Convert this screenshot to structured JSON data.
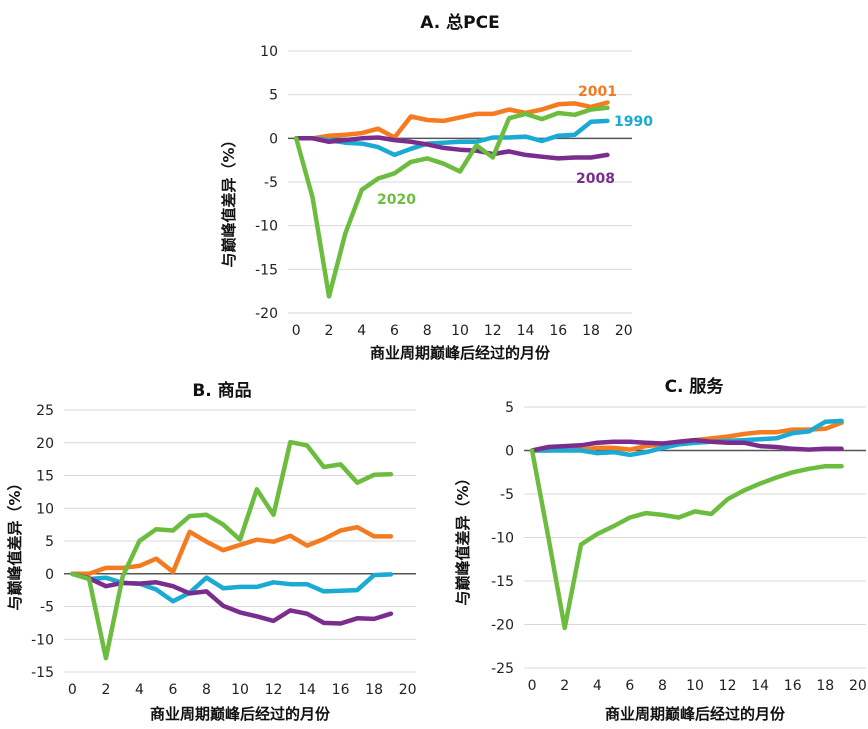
{
  "chart_data": [
    {
      "type": "line",
      "title": "A. 总PCE",
      "xlabel": "商业周期巅峰后经过的月份",
      "ylabel": "与巅峰值差异（%）",
      "xlim": [
        -0.5,
        20.5
      ],
      "ylim": [
        -20,
        10
      ],
      "xticks": [
        "0",
        "2",
        "4",
        "6",
        "8",
        "10",
        "12",
        "14",
        "16",
        "18",
        "20"
      ],
      "yticks": [
        "10",
        "5",
        "0",
        "-5",
        "-10",
        "-15",
        "-20"
      ],
      "series": [
        {
          "name": "2001",
          "color": "#f47b20",
          "x": [
            0,
            1,
            2,
            3,
            4,
            5,
            6,
            7,
            8,
            9,
            10,
            11,
            12,
            13,
            14,
            15,
            16,
            17,
            18,
            19
          ],
          "y": [
            0,
            0,
            0.3,
            0.4,
            0.6,
            1.1,
            0.1,
            2.5,
            2.1,
            2.0,
            2.4,
            2.8,
            2.8,
            3.3,
            2.9,
            3.3,
            3.9,
            4.0,
            3.6,
            4.1
          ]
        },
        {
          "name": "1990",
          "color": "#1aabd4",
          "x": [
            0,
            1,
            2,
            3,
            4,
            5,
            6,
            7,
            8,
            9,
            10,
            11,
            12,
            13,
            14,
            15,
            16,
            17,
            18,
            19
          ],
          "y": [
            0,
            0,
            -0.2,
            -0.5,
            -0.6,
            -1.0,
            -1.9,
            -1.2,
            -0.6,
            -0.5,
            -0.4,
            -0.4,
            0.1,
            0.1,
            0.2,
            -0.3,
            0.3,
            0.4,
            1.9,
            2.0
          ]
        },
        {
          "name": "2008",
          "color": "#7b2d8e",
          "x": [
            0,
            1,
            2,
            3,
            4,
            5,
            6,
            7,
            8,
            9,
            10,
            11,
            12,
            13,
            14,
            15,
            16,
            17,
            18,
            19
          ],
          "y": [
            0,
            0,
            -0.4,
            -0.2,
            0,
            0.1,
            -0.2,
            -0.4,
            -0.7,
            -1.1,
            -1.3,
            -1.4,
            -1.8,
            -1.5,
            -1.9,
            -2.1,
            -2.3,
            -2.2,
            -2.2,
            -1.9
          ]
        },
        {
          "name": "2020",
          "color": "#6cbd3f",
          "x": [
            0,
            1,
            2,
            3,
            4,
            5,
            6,
            7,
            8,
            9,
            10,
            11,
            12,
            13,
            14,
            15,
            16,
            17,
            18,
            19
          ],
          "y": [
            0,
            -6.8,
            -18.1,
            -10.9,
            -5.9,
            -4.6,
            -4.0,
            -2.7,
            -2.3,
            -2.9,
            -3.8,
            -0.8,
            -2.2,
            2.3,
            2.8,
            2.2,
            2.9,
            2.7,
            3.3,
            3.5
          ]
        }
      ]
    },
    {
      "type": "line",
      "title": "B. 商品",
      "xlabel": "商业周期巅峰后经过的月份",
      "ylabel": "与巅峰值差异（%）",
      "xlim": [
        -0.5,
        20.5
      ],
      "ylim": [
        -15,
        25
      ],
      "xticks": [
        "0",
        "2",
        "4",
        "6",
        "8",
        "10",
        "12",
        "14",
        "16",
        "18",
        "20"
      ],
      "yticks": [
        "25",
        "20",
        "15",
        "10",
        "5",
        "0",
        "-5",
        "-10",
        "-15"
      ],
      "series": [
        {
          "name": "",
          "color": "#f47b20",
          "x": [
            0,
            1,
            2,
            3,
            4,
            5,
            6,
            7,
            8,
            9,
            10,
            11,
            12,
            13,
            14,
            15,
            16,
            17,
            18,
            19
          ],
          "y": [
            0,
            0,
            0.9,
            0.9,
            1.2,
            2.3,
            0.3,
            6.4,
            4.9,
            3.6,
            4.4,
            5.2,
            4.9,
            5.8,
            4.3,
            5.3,
            6.6,
            7.1,
            5.7,
            5.7
          ]
        },
        {
          "name": "",
          "color": "#1aabd4",
          "x": [
            0,
            1,
            2,
            3,
            4,
            5,
            6,
            7,
            8,
            9,
            10,
            11,
            12,
            13,
            14,
            15,
            16,
            17,
            18,
            19
          ],
          "y": [
            0,
            -0.8,
            -0.6,
            -1.4,
            -1.5,
            -2.4,
            -4.2,
            -2.9,
            -0.6,
            -2.2,
            -2.0,
            -2.0,
            -1.3,
            -1.6,
            -1.6,
            -2.7,
            -2.6,
            -2.5,
            -0.2,
            -0.1
          ]
        },
        {
          "name": "",
          "color": "#7b2d8e",
          "x": [
            0,
            1,
            2,
            3,
            4,
            5,
            6,
            7,
            8,
            9,
            10,
            11,
            12,
            13,
            14,
            15,
            16,
            17,
            18,
            19
          ],
          "y": [
            0,
            -0.7,
            -1.9,
            -1.4,
            -1.5,
            -1.3,
            -1.9,
            -3.0,
            -2.7,
            -4.9,
            -5.9,
            -6.5,
            -7.2,
            -5.6,
            -6.1,
            -7.5,
            -7.6,
            -6.8,
            -6.9,
            -6.1
          ]
        },
        {
          "name": "",
          "color": "#6cbd3f",
          "x": [
            0,
            1,
            2,
            3,
            4,
            5,
            6,
            7,
            8,
            9,
            10,
            11,
            12,
            13,
            14,
            15,
            16,
            17,
            18,
            19
          ],
          "y": [
            0,
            -0.8,
            -12.9,
            -0.4,
            5.0,
            6.8,
            6.6,
            8.8,
            9.0,
            7.5,
            5.2,
            12.9,
            9.0,
            20.1,
            19.6,
            16.3,
            16.7,
            13.9,
            15.1,
            15.2
          ]
        }
      ]
    },
    {
      "type": "line",
      "title": "C. 服务",
      "xlabel": "商业周期巅峰后经过的月份",
      "ylabel": "与巅峰值差异（%）",
      "xlim": [
        -0.5,
        20.5
      ],
      "ylim": [
        -25,
        5
      ],
      "xticks": [
        "0",
        "2",
        "4",
        "6",
        "8",
        "10",
        "12",
        "14",
        "16",
        "18",
        "20"
      ],
      "yticks": [
        "5",
        "0",
        "-5",
        "-10",
        "-15",
        "-20",
        "-25"
      ],
      "series": [
        {
          "name": "",
          "color": "#f47b20",
          "x": [
            0,
            1,
            2,
            3,
            4,
            5,
            6,
            7,
            8,
            9,
            10,
            11,
            12,
            13,
            14,
            15,
            16,
            17,
            18,
            19
          ],
          "y": [
            0,
            0,
            0.1,
            0.1,
            0.3,
            0.3,
            0.1,
            0.5,
            0.7,
            1.0,
            1.2,
            1.4,
            1.6,
            1.9,
            2.1,
            2.1,
            2.4,
            2.4,
            2.5,
            3.2
          ]
        },
        {
          "name": "",
          "color": "#1aabd4",
          "x": [
            0,
            1,
            2,
            3,
            4,
            5,
            6,
            7,
            8,
            9,
            10,
            11,
            12,
            13,
            14,
            15,
            16,
            17,
            18,
            19
          ],
          "y": [
            0,
            0,
            0,
            0,
            -0.3,
            -0.2,
            -0.5,
            -0.2,
            0.3,
            0.7,
            0.9,
            1.0,
            1.1,
            1.2,
            1.3,
            1.4,
            2.0,
            2.2,
            3.3,
            3.4
          ]
        },
        {
          "name": "",
          "color": "#7b2d8e",
          "x": [
            0,
            1,
            2,
            3,
            4,
            5,
            6,
            7,
            8,
            9,
            10,
            11,
            12,
            13,
            14,
            15,
            16,
            17,
            18,
            19
          ],
          "y": [
            0,
            0.4,
            0.5,
            0.6,
            0.9,
            1.0,
            1.0,
            0.9,
            0.8,
            1.0,
            1.2,
            1.0,
            0.9,
            0.9,
            0.5,
            0.4,
            0.2,
            0.1,
            0.2,
            0.2
          ]
        },
        {
          "name": "",
          "color": "#6cbd3f",
          "x": [
            0,
            1,
            2,
            3,
            4,
            5,
            6,
            7,
            8,
            9,
            10,
            11,
            12,
            13,
            14,
            15,
            16,
            17,
            18,
            19
          ],
          "y": [
            0,
            -10,
            -20.4,
            -10.8,
            -9.6,
            -8.7,
            -7.7,
            -7.2,
            -7.4,
            -7.7,
            -7.0,
            -7.3,
            -5.6,
            -4.6,
            -3.8,
            -3.1,
            -2.5,
            -2.1,
            -1.8,
            -1.8
          ]
        }
      ]
    }
  ]
}
